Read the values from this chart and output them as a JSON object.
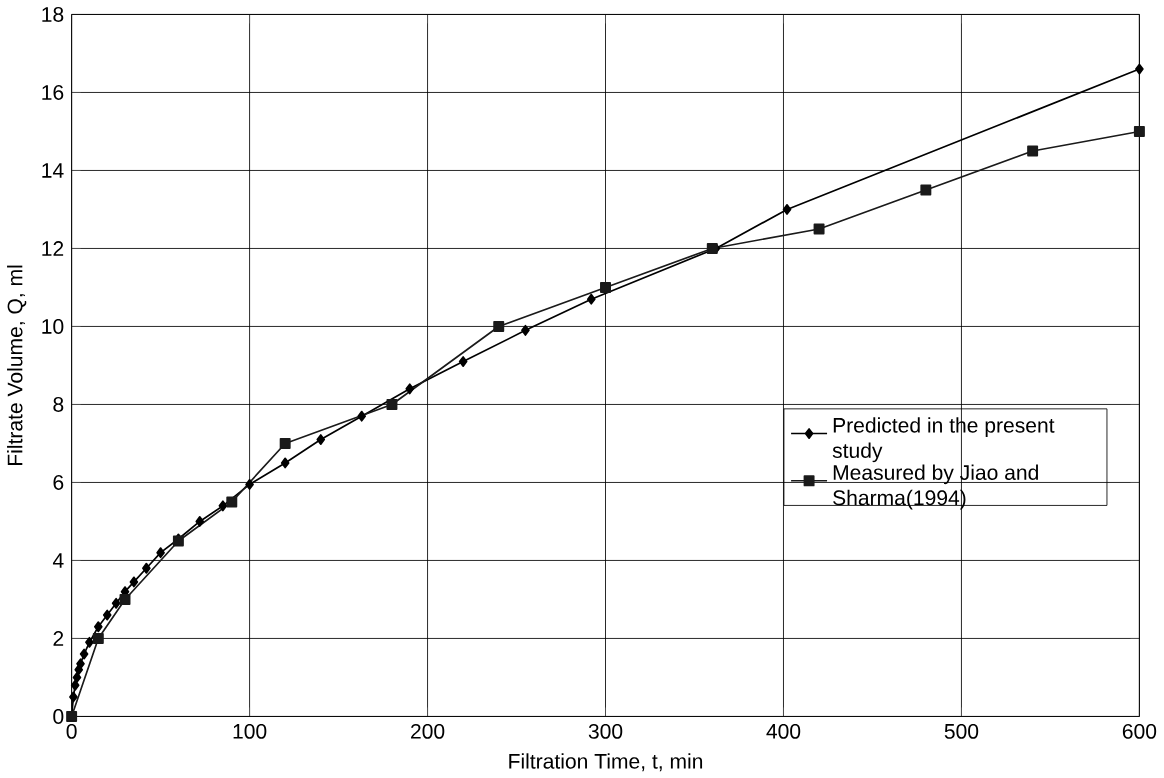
{
  "chart_data": {
    "type": "line",
    "xlabel": "Filtration Time, t, min",
    "ylabel": "Filtrate Volume, Q, ml",
    "xlim": [
      0,
      600
    ],
    "xticks": [
      0,
      100,
      200,
      300,
      400,
      500,
      600
    ],
    "ylim": [
      0,
      18
    ],
    "yticks": [
      0,
      2,
      4,
      6,
      8,
      10,
      12,
      14,
      16,
      18
    ],
    "grid": true,
    "legend": "right",
    "series": [
      {
        "name": "Predicted in the present study",
        "color": "#000000",
        "marker": "diamond",
        "x": [
          0,
          1,
          2,
          3,
          4,
          5,
          7,
          10,
          15,
          20,
          25,
          30,
          35,
          42,
          50,
          60,
          72,
          85,
          100,
          120,
          140,
          163,
          190,
          220,
          255,
          292,
          362,
          402,
          600
        ],
        "values": [
          0,
          0.5,
          0.8,
          1,
          1.2,
          1.35,
          1.6,
          1.9,
          2.3,
          2.6,
          2.9,
          3.2,
          3.45,
          3.8,
          4.2,
          4.55,
          5.0,
          5.4,
          5.95,
          6.5,
          7.1,
          7.7,
          8.4,
          9.1,
          9.9,
          10.7,
          12.0,
          13.0,
          16.6
        ]
      },
      {
        "name": "Measured by Jiao and Sharma(1994)",
        "color": "#1a1a1a",
        "marker": "square",
        "x": [
          0,
          15,
          30,
          60,
          90,
          120,
          180,
          240,
          300,
          360,
          420,
          480,
          540,
          600
        ],
        "values": [
          0,
          2,
          3,
          4.5,
          5.5,
          7,
          8,
          10,
          11,
          12,
          12.5,
          13.5,
          14.5,
          15
        ]
      }
    ]
  }
}
